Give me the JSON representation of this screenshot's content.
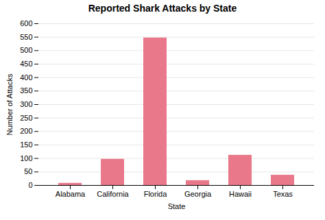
{
  "chart_data": {
    "type": "bar",
    "title": "Reported Shark Attacks by State",
    "xlabel": "State",
    "ylabel": "Number of Attacks",
    "categories": [
      "Alabama",
      "California",
      "Florida",
      "Georgia",
      "Hawaii",
      "Texas"
    ],
    "values": [
      8,
      97,
      547,
      18,
      112,
      38
    ],
    "color": "#e8788a",
    "ylim": [
      0,
      600
    ],
    "yticks": [
      0,
      50,
      100,
      150,
      200,
      250,
      300,
      350,
      400,
      450,
      500,
      550,
      600
    ],
    "grid": true
  }
}
